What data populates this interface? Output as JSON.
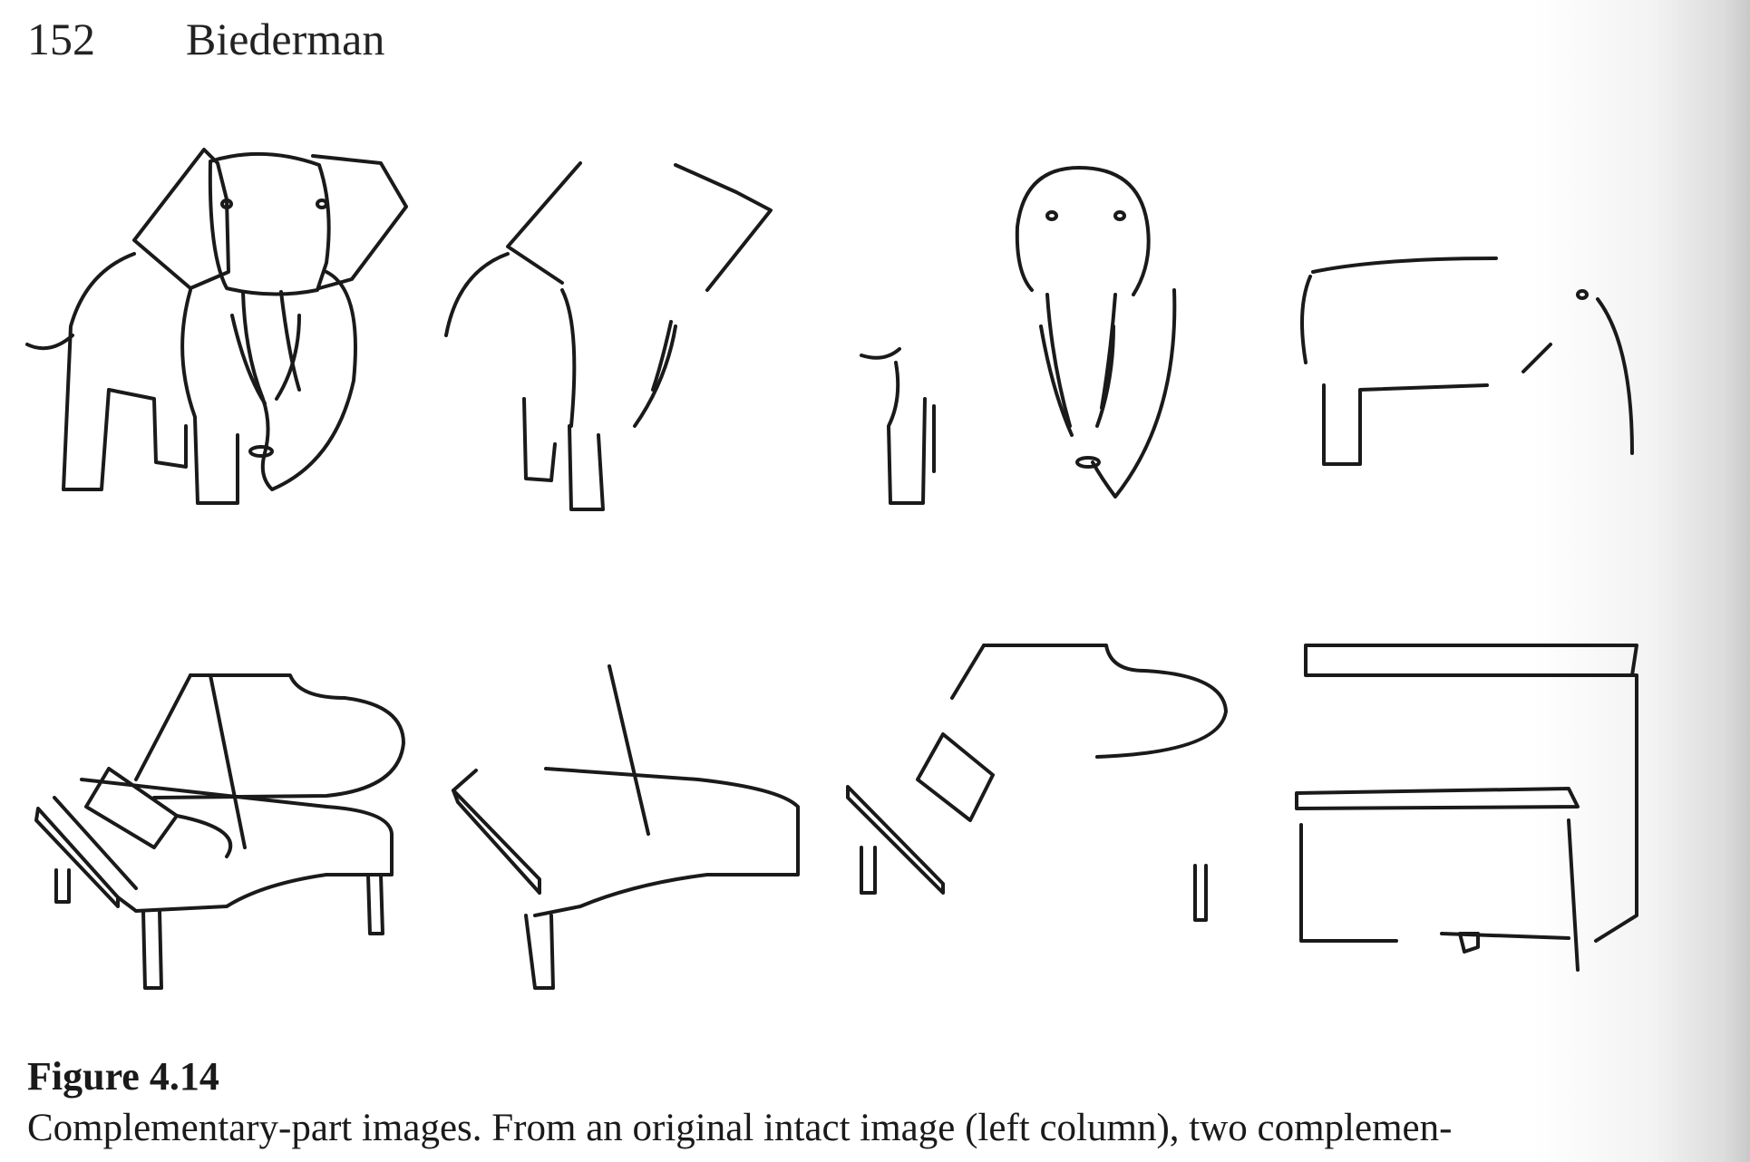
{
  "header": {
    "page_number": "152",
    "running_head": "Biederman"
  },
  "figure": {
    "label": "Figure 4.14",
    "caption": "Complementary-part images. From an original intact image (left column), two complemen-"
  },
  "icons": [
    "elephant-intact-drawing",
    "elephant-partial-drawing-a",
    "elephant-partial-drawing-b",
    "elephant-partial-drawing-c",
    "piano-intact-drawing",
    "piano-partial-drawing-a",
    "piano-partial-drawing-b",
    "upright-piano-drawing"
  ]
}
